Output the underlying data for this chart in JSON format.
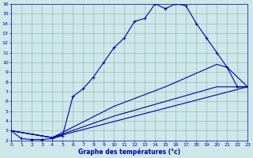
{
  "xlabel": "Graphe des températures (°c)",
  "background_color": "#cce8e8",
  "grid_color": "#99bbbb",
  "line_color": "#0000aa",
  "xlim": [
    0,
    23
  ],
  "ylim": [
    2,
    16
  ],
  "xticks": [
    0,
    1,
    2,
    3,
    4,
    5,
    6,
    7,
    8,
    9,
    10,
    11,
    12,
    13,
    14,
    15,
    16,
    17,
    18,
    19,
    20,
    21,
    22,
    23
  ],
  "yticks": [
    2,
    3,
    4,
    5,
    6,
    7,
    8,
    9,
    10,
    11,
    12,
    13,
    14,
    15,
    16
  ],
  "line1_x": [
    0,
    1,
    2,
    3,
    4,
    5,
    6,
    7,
    8,
    9,
    10,
    11,
    12,
    13,
    14,
    15,
    16,
    17,
    18,
    19,
    20,
    21,
    22,
    23
  ],
  "line1_y": [
    3.0,
    2.2,
    2.1,
    2.1,
    2.2,
    2.5,
    6.5,
    7.3,
    8.5,
    10.0,
    11.5,
    12.5,
    14.2,
    14.5,
    16.0,
    15.5,
    16.0,
    15.8,
    14.0,
    12.5,
    11.0,
    9.5,
    7.5,
    7.5
  ],
  "line2_x": [
    0,
    4,
    23
  ],
  "line2_y": [
    3.0,
    2.3,
    7.5
  ],
  "line3_x": [
    0,
    4,
    10,
    15,
    20,
    21,
    23
  ],
  "line3_y": [
    3.0,
    2.3,
    5.5,
    7.5,
    9.8,
    9.5,
    7.5
  ],
  "line4_x": [
    0,
    4,
    10,
    15,
    20,
    22,
    23
  ],
  "line4_y": [
    3.0,
    2.3,
    4.5,
    6.0,
    7.5,
    7.5,
    7.5
  ]
}
